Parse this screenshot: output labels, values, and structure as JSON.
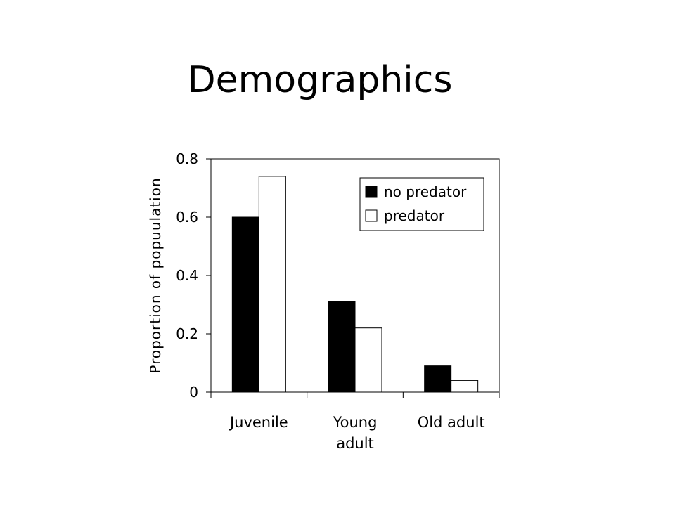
{
  "slide": {
    "title": "Demographics"
  },
  "chart_data": {
    "type": "bar",
    "title": "",
    "xlabel": "",
    "ylabel": "Proportion of popuulation",
    "categories": [
      [
        "Juvenile"
      ],
      [
        "Young",
        "adult"
      ],
      [
        "Old adult"
      ]
    ],
    "series": [
      {
        "name": "no predator",
        "values": [
          0.6,
          0.31,
          0.09
        ],
        "color": "#000000"
      },
      {
        "name": "predator",
        "values": [
          0.74,
          0.22,
          0.04
        ],
        "color": "#ffffff"
      }
    ],
    "ylim": [
      0,
      0.8
    ],
    "yticks": [
      {
        "value": 0,
        "label": "0"
      },
      {
        "value": 0.2,
        "label": "0.2"
      },
      {
        "value": 0.4,
        "label": "0.4"
      },
      {
        "value": 0.6,
        "label": "0.6"
      },
      {
        "value": 0.8,
        "label": "0.8"
      }
    ],
    "grid": false,
    "legend_position": "top-right"
  }
}
